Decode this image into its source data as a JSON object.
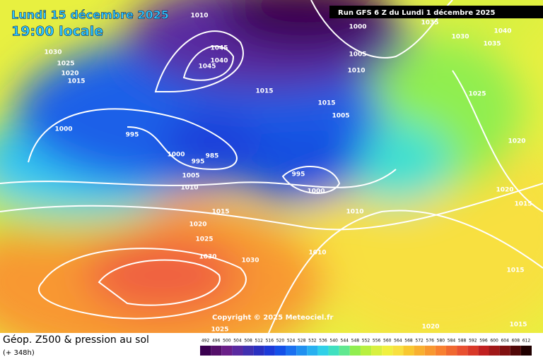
{
  "header": {
    "date": "Lundi 15 décembre 2025",
    "time": "19:00 locale",
    "run": "Run GFS 6 Z du Lundi 1 décembre 2025"
  },
  "copyright": "Copyright © 2025 Meteociel.fr",
  "footer": {
    "title": "Géop. Z500 & pression au sol",
    "lead": "(+ 348h)"
  },
  "isobar_labels": [
    1010,
    1035,
    1000,
    1030,
    1025,
    1020,
    1015,
    1045,
    1040,
    1045,
    1015,
    1005,
    1010,
    1030,
    1040,
    1035,
    1025,
    1015,
    1005,
    1000,
    995,
    1000,
    995,
    985,
    1005,
    1010,
    995,
    1000,
    1015,
    1010,
    1020,
    1025,
    1030,
    1030,
    1010,
    1020,
    1015,
    1020,
    1015,
    1025,
    1020,
    1015
  ],
  "colorbar": {
    "ticks": [
      492,
      496,
      500,
      504,
      508,
      512,
      516,
      520,
      524,
      528,
      532,
      536,
      540,
      544,
      548,
      552,
      556,
      560,
      564,
      568,
      572,
      576,
      580,
      584,
      588,
      592,
      596,
      600,
      604,
      608,
      612
    ],
    "colors": [
      "#3a0050",
      "#55106a",
      "#6a1f88",
      "#5a2aa0",
      "#4030b0",
      "#2a30c0",
      "#1c3ad8",
      "#1450e8",
      "#1a70f0",
      "#2090f0",
      "#28b0f0",
      "#30d0e8",
      "#40e0c0",
      "#60e890",
      "#90ee50",
      "#b8f040",
      "#d8f040",
      "#f0f040",
      "#f8e040",
      "#f8c830",
      "#f8b030",
      "#f89830",
      "#f88030",
      "#f06830",
      "#e85030",
      "#d83828",
      "#c02020",
      "#a01818",
      "#801010",
      "#500808",
      "#200000"
    ]
  }
}
